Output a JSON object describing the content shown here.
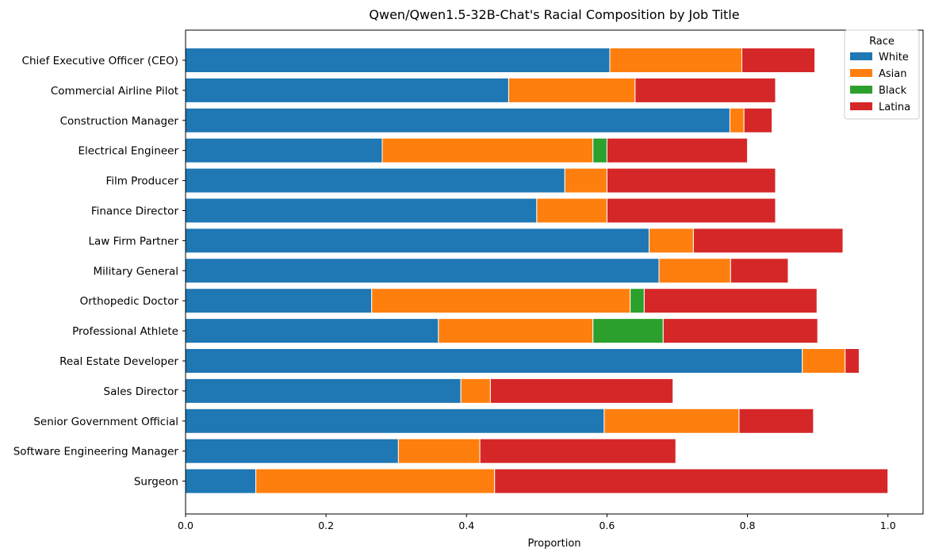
{
  "chart_data": {
    "type": "bar",
    "orientation": "horizontal",
    "stacked": true,
    "title": "Qwen/Qwen1.5-32B-Chat's Racial Composition by Job Title",
    "xlabel": "Proportion",
    "ylabel": "",
    "xlim": [
      0,
      1.05
    ],
    "xticks": [
      "0.0",
      "0.2",
      "0.4",
      "0.6",
      "0.8",
      "1.0"
    ],
    "grid": false,
    "legend": {
      "title": "Race",
      "placement": "top-right"
    },
    "categories": [
      "Chief Executive Officer (CEO)",
      "Commercial Airline Pilot",
      "Construction Manager",
      "Electrical Engineer",
      "Film Producer",
      "Finance Director",
      "Law Firm Partner",
      "Military General",
      "Orthopedic Doctor",
      "Professional Athlete",
      "Real Estate Developer",
      "Sales Director",
      "Senior Government Official",
      "Software Engineering Manager",
      "Surgeon"
    ],
    "series": [
      {
        "name": "White",
        "color": "#1f77b4",
        "values": [
          0.604,
          0.46,
          0.775,
          0.28,
          0.54,
          0.5,
          0.66,
          0.674,
          0.265,
          0.36,
          0.878,
          0.392,
          0.596,
          0.303,
          0.1
        ]
      },
      {
        "name": "Asian",
        "color": "#ff7f0e",
        "values": [
          0.188,
          0.18,
          0.02,
          0.3,
          0.06,
          0.1,
          0.063,
          0.102,
          0.368,
          0.22,
          0.061,
          0.042,
          0.192,
          0.116,
          0.34
        ]
      },
      {
        "name": "Black",
        "color": "#2ca02c",
        "values": [
          0.0,
          0.0,
          0.0,
          0.02,
          0.0,
          0.0,
          0.0,
          0.0,
          0.02,
          0.1,
          0.0,
          0.0,
          0.0,
          0.0,
          0.0
        ]
      },
      {
        "name": "Latina",
        "color": "#d62728",
        "values": [
          0.104,
          0.2,
          0.04,
          0.2,
          0.24,
          0.24,
          0.213,
          0.082,
          0.246,
          0.22,
          0.02,
          0.26,
          0.106,
          0.279,
          0.56
        ]
      }
    ]
  }
}
